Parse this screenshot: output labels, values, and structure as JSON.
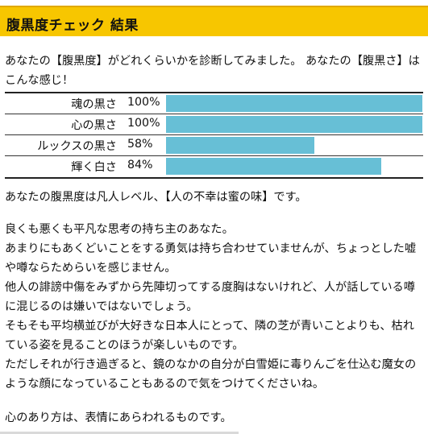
{
  "header": {
    "title": "腹黒度チェック 結果"
  },
  "intro": "あなたの【腹黒度】がどれくらいかを診断してみました。 あなたの【腹黒さ】はこんな感じ！",
  "scores": [
    {
      "label": "魂の黒さ",
      "percent_text": "100%",
      "value": 100
    },
    {
      "label": "心の黒さ",
      "percent_text": "100%",
      "value": 100
    },
    {
      "label": "ルックスの黒さ",
      "percent_text": "58%",
      "value": 58
    },
    {
      "label": "輝く白さ",
      "percent_text": "84%",
      "value": 84
    }
  ],
  "bar_color": "#67bfd6",
  "summary": "あなたの腹黒度は凡人レベル、【人の不幸は蜜の味】です。",
  "body_lines": [
    "良くも悪くも平凡な思考の持ち主のあなた。",
    "あまりにもあくどいことをする勇気は持ち合わせていませんが、ちょっとした嘘や噂ならためらいを感じません。",
    "他人の誹謗中傷をみずから先陣切ってする度胸はないけれど、人が話している噂に混じるのは嫌いではないでしょう。",
    "そもそも平均横並びが大好きな日本人にとって、隣の芝が青いことよりも、枯れている姿を見ることのほうが楽しいものです。",
    "ただしそれが行き過ぎると、鏡のなかの自分が白雪姫に毒りんごを仕込む魔女のような顔になっていることもあるので気をつけてくださいね。"
  ],
  "closing": "心のあり方は、表情にあらわれるものです。"
}
